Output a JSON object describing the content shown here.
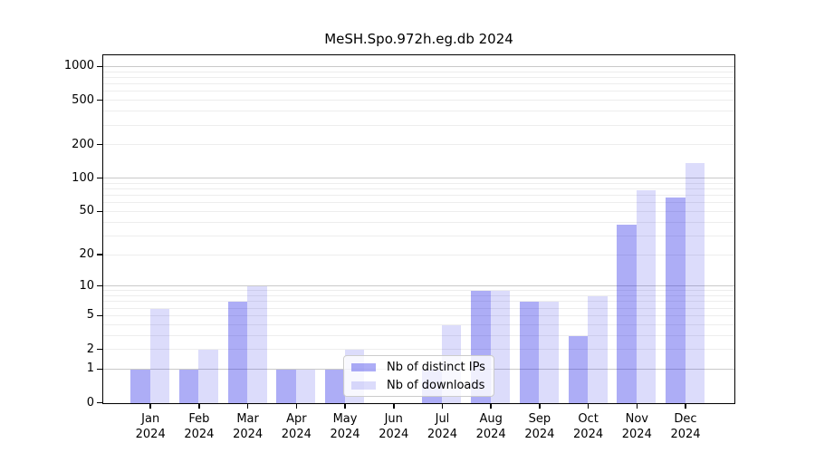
{
  "chart_data": {
    "type": "bar",
    "title": "MeSH.Spo.972h.eg.db 2024",
    "categories": [
      {
        "month": "Jan",
        "year": "2024"
      },
      {
        "month": "Feb",
        "year": "2024"
      },
      {
        "month": "Mar",
        "year": "2024"
      },
      {
        "month": "Apr",
        "year": "2024"
      },
      {
        "month": "May",
        "year": "2024"
      },
      {
        "month": "Jun",
        "year": "2024"
      },
      {
        "month": "Jul",
        "year": "2024"
      },
      {
        "month": "Aug",
        "year": "2024"
      },
      {
        "month": "Sep",
        "year": "2024"
      },
      {
        "month": "Oct",
        "year": "2024"
      },
      {
        "month": "Nov",
        "year": "2024"
      },
      {
        "month": "Dec",
        "year": "2024"
      }
    ],
    "series": [
      {
        "name": "Nb of distinct IPs",
        "color": "rgba(20,20,230,0.35)",
        "values": [
          1,
          1,
          7,
          1,
          1,
          0,
          1,
          9,
          7,
          3,
          38,
          67
        ]
      },
      {
        "name": "Nb of downloads",
        "color": "rgba(20,20,230,0.15)",
        "values": [
          6,
          2,
          10,
          1,
          2,
          0,
          4,
          9,
          7,
          8,
          78,
          138
        ]
      }
    ],
    "xlabel": "",
    "ylabel": "",
    "yscale": "log10(1+value)",
    "ylim": [
      0,
      1000
    ],
    "y_ticks": [
      0,
      1,
      2,
      5,
      10,
      20,
      50,
      100,
      200,
      500,
      1000
    ],
    "grid": {
      "orientation": "horizontal",
      "major_lines_at": [
        1,
        10,
        100,
        1000
      ],
      "major_color": "#c9c9c9",
      "minor_color": "#ededed"
    },
    "legend_position": "inside lower-center"
  }
}
